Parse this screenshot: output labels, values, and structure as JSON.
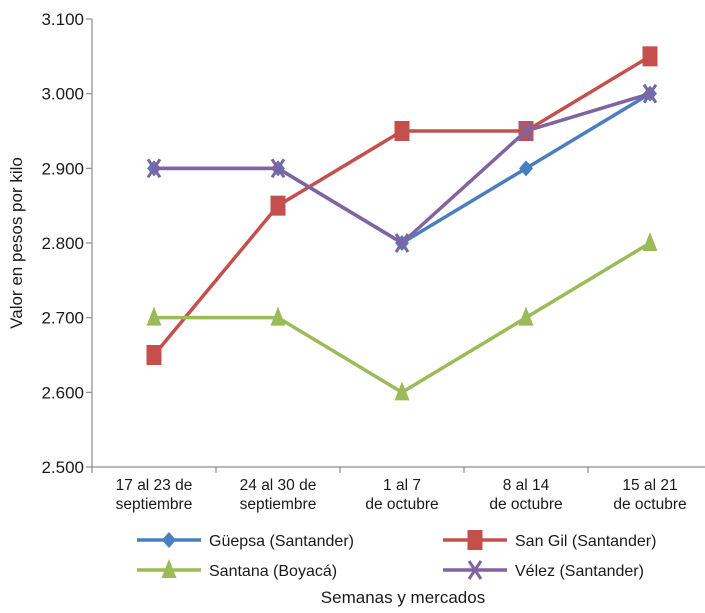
{
  "chart_data": {
    "type": "line",
    "title": "",
    "xlabel": "Semanas y mercados",
    "ylabel": "Valor en pesos por kilo",
    "ylim": [
      2500,
      3100
    ],
    "ytick_step": 100,
    "ytick_labels": [
      "2.500",
      "2.600",
      "2.700",
      "2.800",
      "2.900",
      "3.000",
      "3.100"
    ],
    "grid": false,
    "legend_position": "bottom",
    "categories": [
      [
        "17 al 23 de",
        "septiembre"
      ],
      [
        "24 al 30 de",
        "septiembre"
      ],
      [
        "1 al 7",
        "de octubre"
      ],
      [
        "8 al 14",
        "de octubre"
      ],
      [
        "15 al 21",
        "de octubre"
      ]
    ],
    "series": [
      {
        "name": "Güepsa (Santander)",
        "color": "#4a7fbf",
        "marker": "diamond",
        "values": [
          2900,
          2900,
          2800,
          2900,
          3000
        ]
      },
      {
        "name": "San Gil (Santander)",
        "color": "#c4504d",
        "marker": "square",
        "values": [
          2650,
          2850,
          2950,
          2950,
          3050
        ]
      },
      {
        "name": "Santana (Boyacá)",
        "color": "#9bbb59",
        "marker": "triangle",
        "values": [
          2700,
          2700,
          2600,
          2700,
          2800
        ]
      },
      {
        "name": "Vélez (Santander)",
        "color": "#8064a2",
        "marker": "x",
        "values": [
          2900,
          2900,
          2800,
          2950,
          3000
        ]
      }
    ]
  }
}
